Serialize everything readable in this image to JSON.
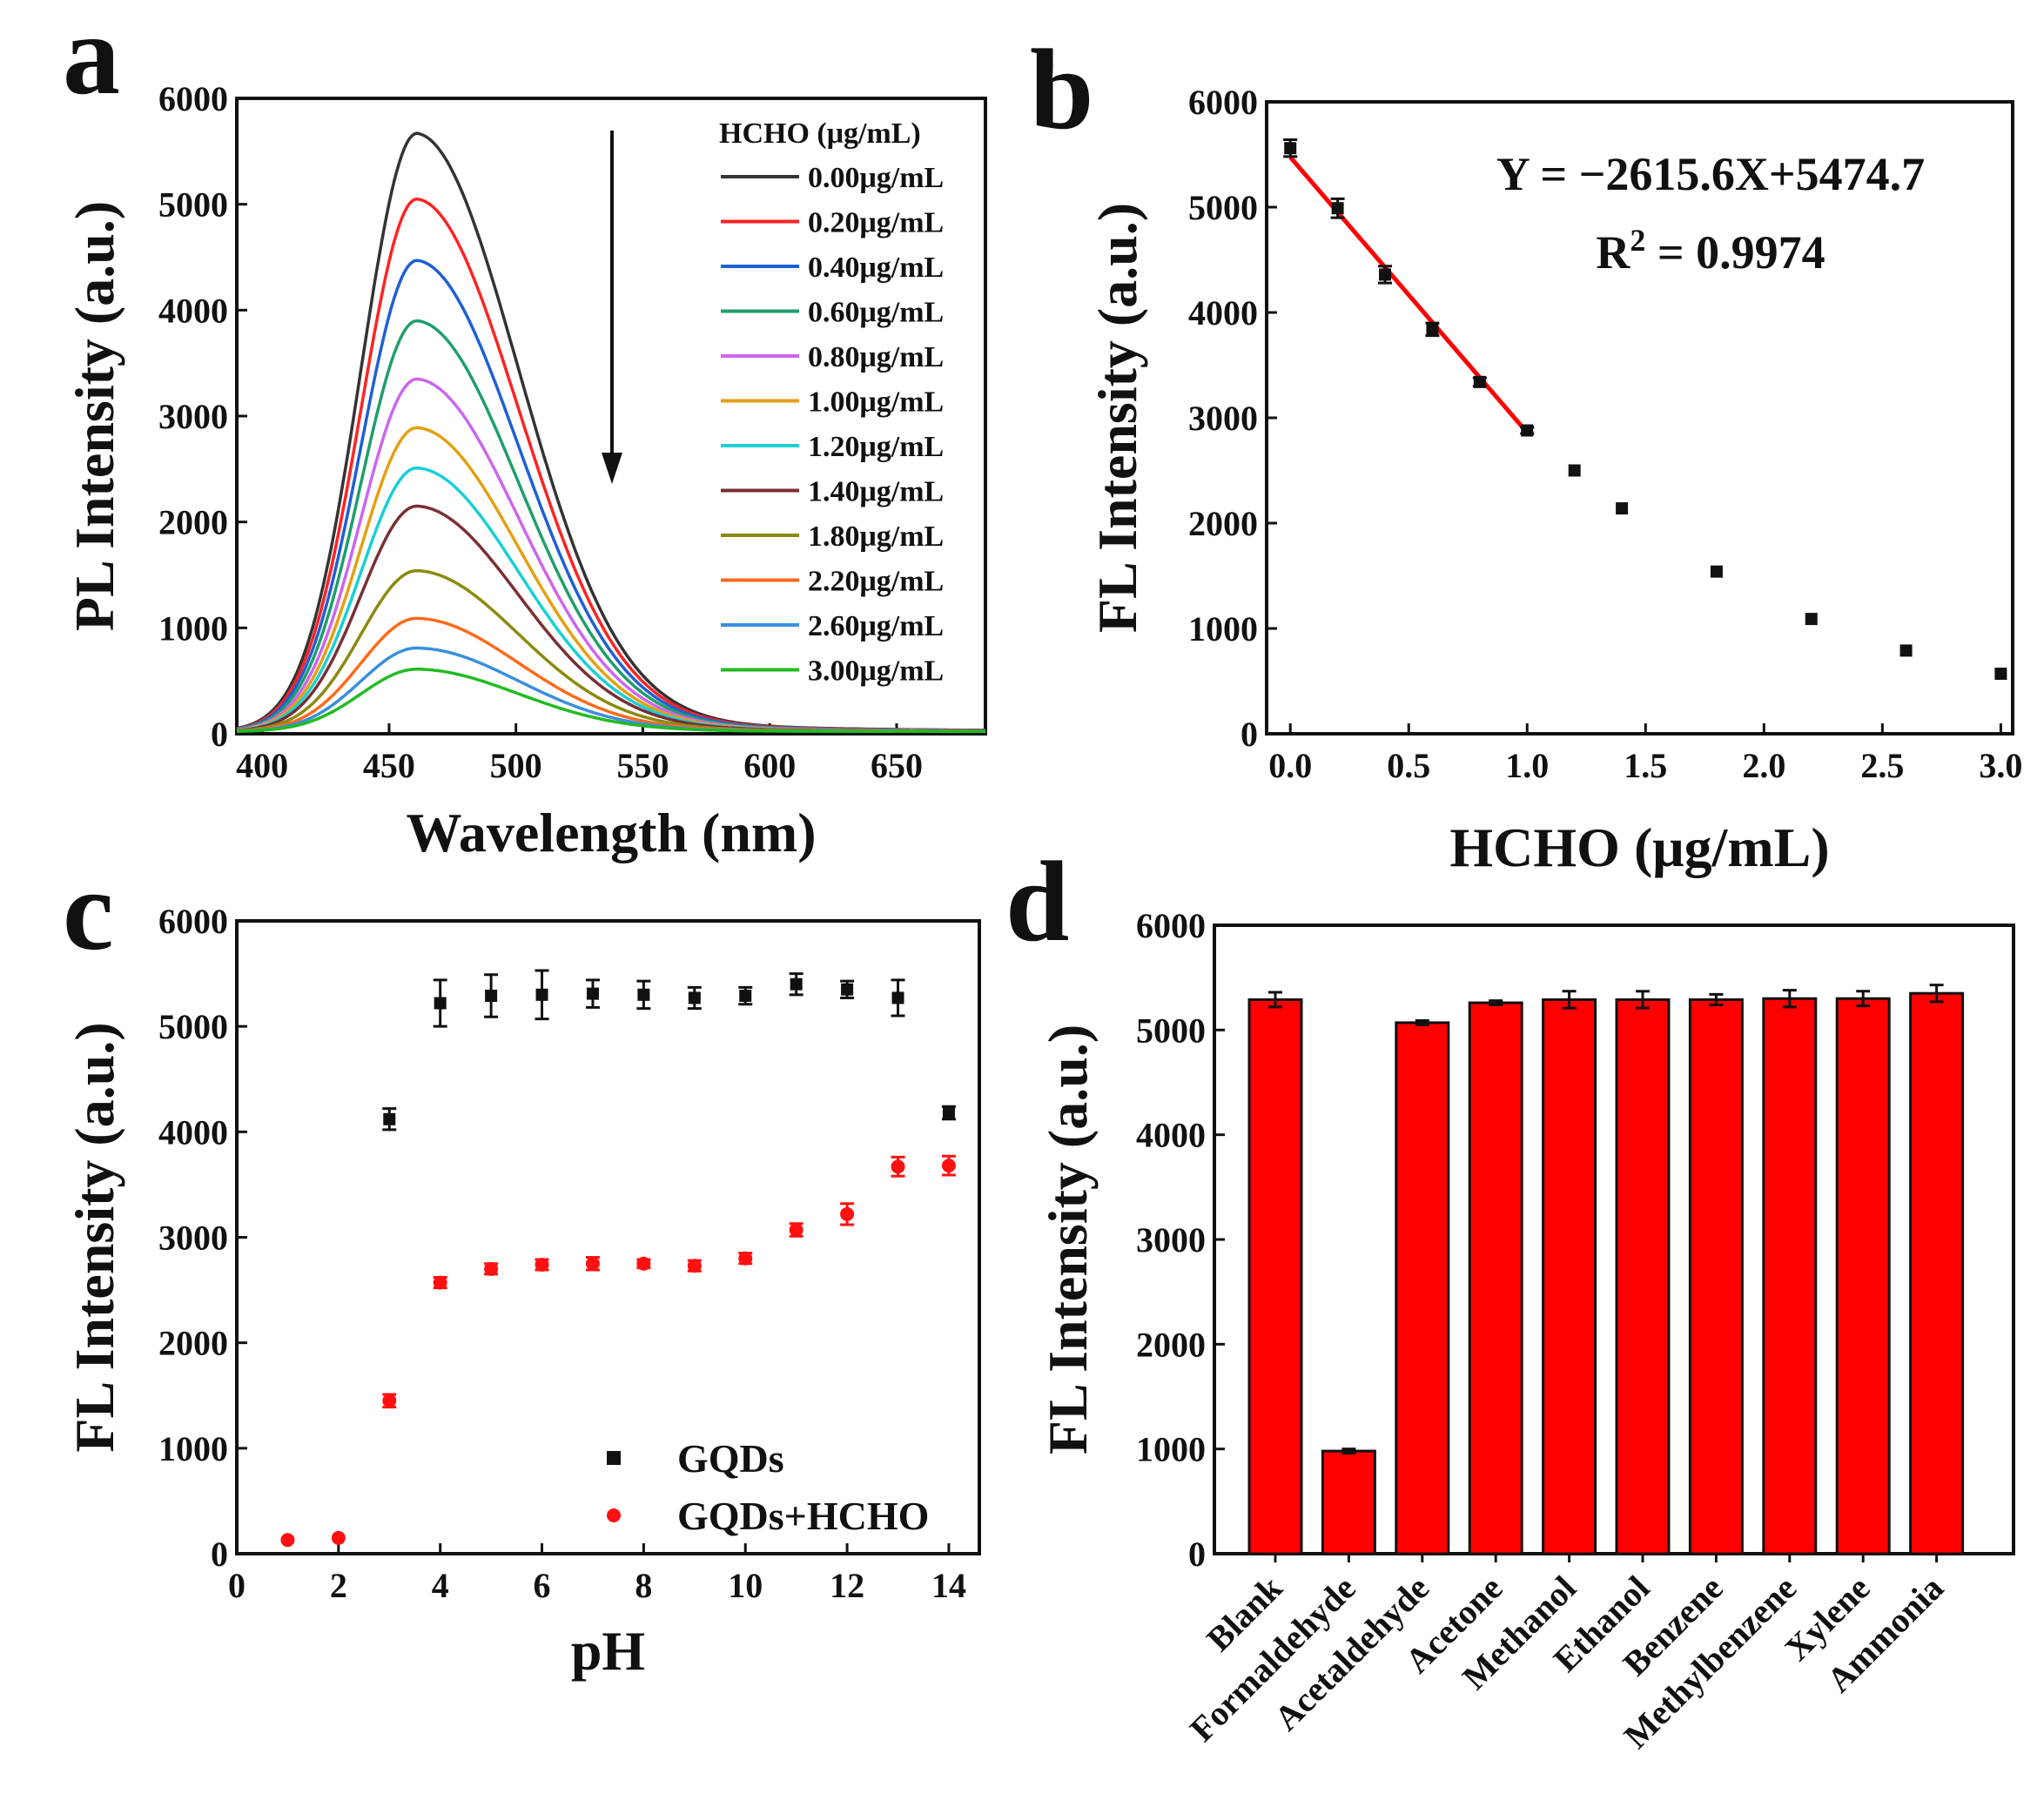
{
  "chart_data": [
    {
      "panel": "a",
      "type": "line",
      "xlabel": "Wavelength (nm)",
      "ylabel": "PL Intensity (a.u.)",
      "xlim": [
        390,
        685
      ],
      "ylim": [
        0,
        6000
      ],
      "xticks": [
        400,
        450,
        500,
        550,
        600,
        650
      ],
      "yticks": [
        0,
        1000,
        2000,
        3000,
        4000,
        5000,
        6000
      ],
      "legend_title": "HCHO (μg/mL)",
      "annotation": "down arrow indicating decreasing intensity",
      "peak_wavelength": 461,
      "series": [
        {
          "name": "0.00μg/mL",
          "peak": 5650,
          "color": "#333333"
        },
        {
          "name": "0.20μg/mL",
          "peak": 5030,
          "color": "#ff2222"
        },
        {
          "name": "0.40μg/mL",
          "peak": 4450,
          "color": "#1e5fd6"
        },
        {
          "name": "0.60μg/mL",
          "peak": 3880,
          "color": "#1f9e6b"
        },
        {
          "name": "0.80μg/mL",
          "peak": 3330,
          "color": "#cc66ee"
        },
        {
          "name": "1.00μg/mL",
          "peak": 2870,
          "color": "#e3a012"
        },
        {
          "name": "1.20μg/mL",
          "peak": 2490,
          "color": "#19cfd6"
        },
        {
          "name": "1.40μg/mL",
          "peak": 2130,
          "color": "#7a2f35"
        },
        {
          "name": "1.80μg/mL",
          "peak": 1520,
          "color": "#8a8a10"
        },
        {
          "name": "2.20μg/mL",
          "peak": 1070,
          "color": "#ff6a1a"
        },
        {
          "name": "2.60μg/mL",
          "peak": 790,
          "color": "#3a8fdd"
        },
        {
          "name": "3.00μg/mL",
          "peak": 590,
          "color": "#22bb22"
        }
      ]
    },
    {
      "panel": "b",
      "type": "scatter",
      "xlabel": "HCHO (μg/mL)",
      "ylabel": "FL Intensity (a.u.)",
      "xlim": [
        -0.1,
        3.05
      ],
      "ylim": [
        0,
        6000
      ],
      "xticks": [
        0.0,
        0.5,
        1.0,
        1.5,
        2.0,
        2.5,
        3.0
      ],
      "xtick_labels": [
        "0.0",
        "0.5",
        "1.0",
        "1.5",
        "2.0",
        "2.5",
        "3.0"
      ],
      "yticks": [
        0,
        1000,
        2000,
        3000,
        4000,
        5000,
        6000
      ],
      "x": [
        0.0,
        0.2,
        0.4,
        0.6,
        0.8,
        1.0,
        1.2,
        1.4,
        1.8,
        2.2,
        2.6,
        3.0
      ],
      "y": [
        5560,
        4990,
        4360,
        3840,
        3340,
        2880,
        2500,
        2140,
        1540,
        1090,
        790,
        570
      ],
      "err": [
        80,
        90,
        80,
        60,
        40,
        30,
        0,
        0,
        0,
        0,
        0,
        0
      ],
      "fit": {
        "slope": -2615.6,
        "intercept": 5474.7,
        "x_range": [
          0.0,
          1.0
        ],
        "color": "#ff0000"
      },
      "equation": "Y = −2615.6X+5474.7",
      "r2_prefix": "R",
      "r2_exp": "2",
      "r2_value": " = 0.9974"
    },
    {
      "panel": "c",
      "type": "scatter",
      "xlabel": "pH",
      "ylabel": "FL Intensity (a.u.)",
      "xlim": [
        0,
        14.6
      ],
      "ylim": [
        0,
        6000
      ],
      "xticks": [
        0,
        2,
        4,
        6,
        8,
        10,
        12,
        14
      ],
      "yticks": [
        0,
        1000,
        2000,
        3000,
        4000,
        5000,
        6000
      ],
      "series": [
        {
          "name": "GQDs",
          "color": "#111111",
          "marker": "square",
          "x": [
            3,
            4,
            5,
            6,
            7,
            8,
            9,
            10,
            11,
            12,
            13,
            14
          ],
          "y": [
            4120,
            5220,
            5290,
            5300,
            5310,
            5300,
            5270,
            5290,
            5400,
            5350,
            5270,
            4180
          ],
          "err": [
            100,
            220,
            200,
            230,
            130,
            130,
            100,
            80,
            100,
            80,
            170,
            60
          ]
        },
        {
          "name": "GQDs+HCHO",
          "color": "#ff1111",
          "marker": "circle",
          "x": [
            1,
            2,
            3,
            4,
            5,
            6,
            7,
            8,
            9,
            10,
            11,
            12,
            13,
            14
          ],
          "y": [
            130,
            150,
            1450,
            2570,
            2700,
            2740,
            2750,
            2750,
            2730,
            2800,
            3070,
            3220,
            3670,
            3680
          ],
          "err": [
            0,
            0,
            60,
            50,
            50,
            50,
            60,
            40,
            50,
            50,
            60,
            100,
            90,
            90
          ]
        }
      ]
    },
    {
      "panel": "d",
      "type": "bar",
      "ylabel": "FL Intensity (a.u.)",
      "ylim": [
        0,
        6000
      ],
      "yticks": [
        0,
        1000,
        2000,
        3000,
        4000,
        5000,
        6000
      ],
      "bar_color": "#ff0000",
      "categories": [
        "Blank",
        "Formaldehyde",
        "Acetaldehyde",
        "Acetone",
        "Methanol",
        "Ethanol",
        "Benzene",
        "Methylbenzene",
        "Xylene",
        "Ammonia"
      ],
      "values": [
        5290,
        980,
        5070,
        5260,
        5290,
        5290,
        5290,
        5300,
        5300,
        5350
      ],
      "err": [
        70,
        20,
        20,
        20,
        80,
        80,
        50,
        80,
        70,
        80
      ]
    }
  ]
}
